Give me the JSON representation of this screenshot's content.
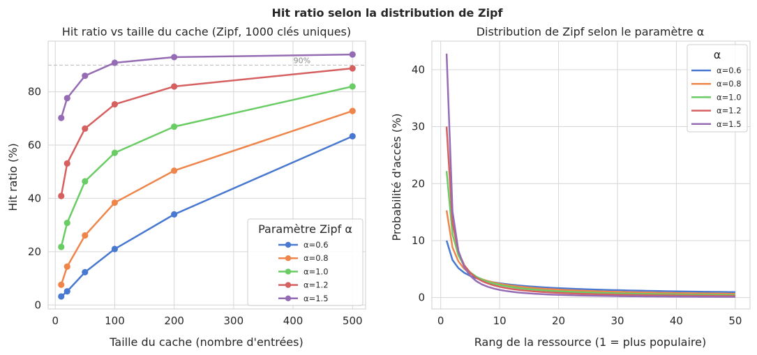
{
  "suptitle": "Hit ratio selon la distribution de Zipf",
  "colors": [
    "#4878d0",
    "#ee854a",
    "#6acc64",
    "#d65f5f",
    "#956cb4"
  ],
  "chart_data": [
    {
      "type": "line",
      "title": "Hit ratio vs taille du cache (Zipf, 1000 clés uniques)",
      "xlabel": "Taille du cache (nombre d'entrées)",
      "ylabel": "Hit ratio (%)",
      "xlim": [
        -12,
        522
      ],
      "ylim": [
        -1.5,
        99
      ],
      "xticks": [
        0,
        100,
        200,
        300,
        400,
        500
      ],
      "yticks": [
        0,
        20,
        40,
        60,
        80
      ],
      "x": [
        10,
        20,
        50,
        100,
        200,
        500
      ],
      "markers": true,
      "reference_line": {
        "y": 90,
        "label": "90%"
      },
      "legend": {
        "title": "Paramètre Zipf α",
        "position": "lower-right"
      },
      "series": [
        {
          "name": "α=0.6",
          "values": [
            3.2,
            5.1,
            12.3,
            21.0,
            34.0,
            63.3
          ]
        },
        {
          "name": "α=0.8",
          "values": [
            7.6,
            14.4,
            26.1,
            38.4,
            50.4,
            72.8
          ]
        },
        {
          "name": "α=1.0",
          "values": [
            21.8,
            30.8,
            46.4,
            57.1,
            66.9,
            82.0
          ]
        },
        {
          "name": "α=1.2",
          "values": [
            40.9,
            53.1,
            66.2,
            75.3,
            82.0,
            88.8
          ]
        },
        {
          "name": "α=1.5",
          "values": [
            70.2,
            77.6,
            86.0,
            90.9,
            93.0,
            94.0
          ]
        }
      ]
    },
    {
      "type": "line",
      "title": "Distribution de Zipf selon le paramètre α",
      "xlabel": "Rang de la ressource (1 = plus populaire)",
      "ylabel": "Probabilité d'accès (%)",
      "xlim": [
        -1.5,
        52.5
      ],
      "ylim": [
        -2,
        45
      ],
      "xticks": [
        0,
        10,
        20,
        30,
        40,
        50
      ],
      "yticks": [
        0,
        10,
        20,
        30,
        40
      ],
      "x_range": [
        1,
        50
      ],
      "legend": {
        "title": "α",
        "position": "top-right"
      },
      "series": [
        {
          "name": "α=0.6",
          "alpha": 0.6,
          "p1": 10.0
        },
        {
          "name": "α=0.8",
          "alpha": 0.8,
          "p1": 15.3
        },
        {
          "name": "α=1.0",
          "alpha": 1.0,
          "p1": 22.2
        },
        {
          "name": "α=1.2",
          "alpha": 1.2,
          "p1": 30.0
        },
        {
          "name": "α=1.5",
          "alpha": 1.5,
          "p1": 42.8
        }
      ]
    }
  ]
}
